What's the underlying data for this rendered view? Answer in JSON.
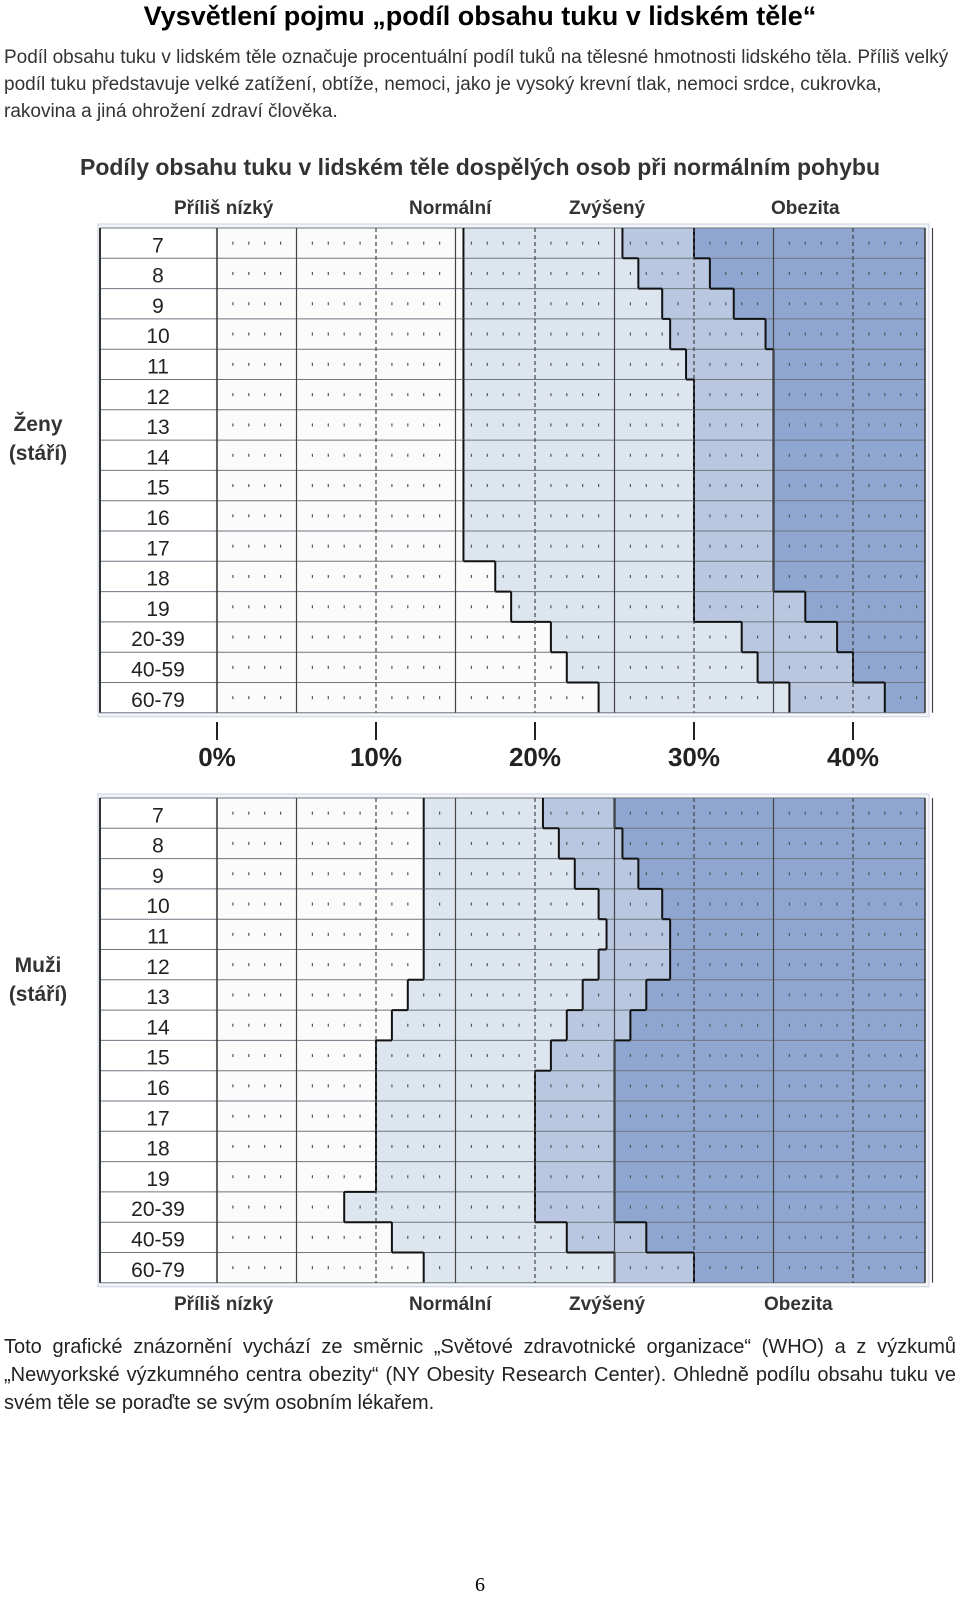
{
  "title": "Vysvětlení pojmu „podíl obsahu tuku v lidském těle“",
  "intro": "Podíl obsahu tuku v lidském těle označuje procentuální podíl tuků na tělesné hmotnosti lidského těla. Příliš velký podíl tuku představuje velké zatížení, obtíže, nemoci, jako je vysoký krevní tlak, nemoci srdce, cukrovka, rakovina a jiná ohrožení zdraví člověka.",
  "chart_title": "Podíly obsahu tuku v lidském těle dospělých osob při normálním pohybu",
  "categories_top": [
    "Příliš nízký",
    "Normální",
    "Zvýšený",
    "Obezita"
  ],
  "categories_bottom": [
    "Příliš nízký",
    "Normální",
    "Zvýšený",
    "Obezita"
  ],
  "groups": [
    {
      "label": "Ženy (stáří)"
    },
    {
      "label": "Muži (stáří)"
    }
  ],
  "chart_data": {
    "type": "table",
    "x_tick_labels": [
      "0%",
      "10%",
      "20%",
      "30%",
      "40%"
    ],
    "xlim": [
      0,
      45
    ],
    "series": [
      {
        "name": "Ženy (stáří)",
        "ages": [
          "7",
          "8",
          "9",
          "10",
          "11",
          "12",
          "13",
          "14",
          "15",
          "16",
          "17",
          "18",
          "19",
          "20-39",
          "40-59",
          "60-79"
        ],
        "normal_from": [
          15.5,
          15.5,
          15.5,
          15.5,
          15.5,
          15.5,
          15.5,
          15.5,
          15.5,
          15.5,
          15.5,
          17.5,
          18.5,
          21,
          22,
          24
        ],
        "elevated_from": [
          25.5,
          26.5,
          28,
          28.5,
          29.5,
          30,
          30,
          30,
          30,
          30,
          30,
          30,
          30,
          33,
          34,
          36
        ],
        "obesity_from": [
          30,
          31,
          32.5,
          34.5,
          35,
          35,
          35,
          35,
          35,
          35,
          35,
          35,
          37,
          39,
          40,
          42
        ]
      },
      {
        "name": "Muži (stáří)",
        "ages": [
          "7",
          "8",
          "9",
          "10",
          "11",
          "12",
          "13",
          "14",
          "15",
          "16",
          "17",
          "18",
          "19",
          "20-39",
          "40-59",
          "60-79"
        ],
        "normal_from": [
          13,
          13,
          13,
          13,
          13,
          13,
          12,
          11,
          10,
          10,
          10,
          10,
          10,
          8,
          11,
          13
        ],
        "elevated_from": [
          20.5,
          21.5,
          22.5,
          24,
          24.5,
          24,
          23,
          22,
          21,
          20,
          20,
          20,
          20,
          20,
          22,
          25
        ],
        "obesity_from": [
          25,
          25.5,
          26.5,
          28,
          28.5,
          28.5,
          27,
          26,
          25,
          25,
          25,
          25,
          25,
          25,
          27,
          30
        ]
      }
    ]
  },
  "note": "Toto grafické znázornění vychází ze směrnic „Světové zdravotnické organizace“ (WHO) a z výzkumů „Newyorkské výzkumného centra obezity“ (NY Obesity Research Center). Ohledně podílu obsahu tuku ve svém těle se poraďte se svým osobním lékařem.",
  "page_number": "6"
}
